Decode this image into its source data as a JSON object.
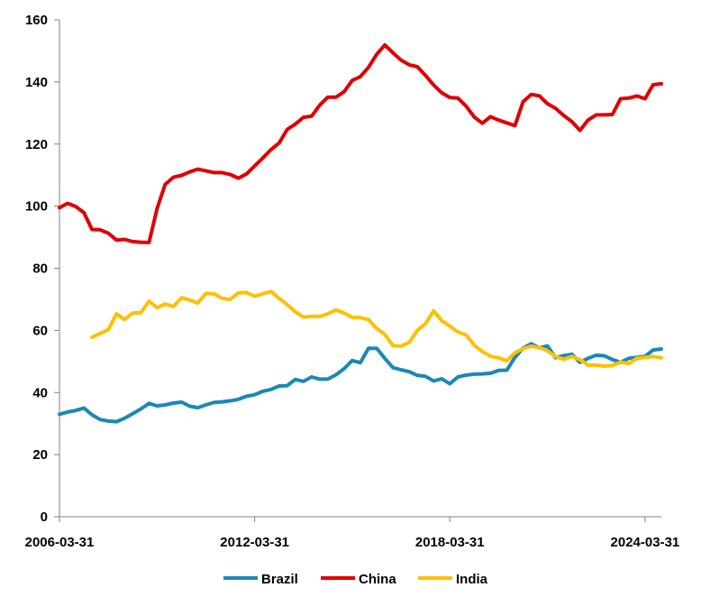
{
  "chart_data": {
    "type": "line",
    "title": "",
    "xlabel": "",
    "ylabel": "",
    "x_ticks": [
      "2006-03-31",
      "2012-03-31",
      "2018-03-31",
      "2024-03-31"
    ],
    "y_ticks": [
      "0",
      "20",
      "40",
      "60",
      "80",
      "100",
      "120",
      "140",
      "160"
    ],
    "ylim": [
      0,
      160
    ],
    "xlim": [
      "2006-03-31",
      "2024-09-30"
    ],
    "grid": false,
    "legend_position": "bottom",
    "colors": {
      "Brazil": "#1a88b8",
      "China": "#e00000",
      "India": "#ffc000"
    },
    "series": [
      {
        "name": "Brazil",
        "x": [
          "2006-03-31",
          "2006-06-30",
          "2006-09-30",
          "2006-12-31",
          "2007-03-31",
          "2007-06-30",
          "2007-09-30",
          "2007-12-31",
          "2008-03-31",
          "2008-06-30",
          "2008-09-30",
          "2008-12-31",
          "2009-03-31",
          "2009-06-30",
          "2009-09-30",
          "2009-12-31",
          "2010-03-31",
          "2010-06-30",
          "2010-09-30",
          "2010-12-31",
          "2011-03-31",
          "2011-06-30",
          "2011-09-30",
          "2011-12-31",
          "2012-03-31",
          "2012-06-30",
          "2012-09-30",
          "2012-12-31",
          "2013-03-31",
          "2013-06-30",
          "2013-09-30",
          "2013-12-31",
          "2014-03-31",
          "2014-06-30",
          "2014-09-30",
          "2014-12-31",
          "2015-03-31",
          "2015-06-30",
          "2015-09-30",
          "2015-12-31",
          "2016-03-31",
          "2016-06-30",
          "2016-09-30",
          "2016-12-31",
          "2017-03-31",
          "2017-06-30",
          "2017-09-30",
          "2017-12-31",
          "2018-03-31",
          "2018-06-30",
          "2018-09-30",
          "2018-12-31",
          "2019-03-31",
          "2019-06-30",
          "2019-09-30",
          "2019-12-31",
          "2020-03-31",
          "2020-06-30",
          "2020-09-30",
          "2020-12-31",
          "2021-03-31",
          "2021-06-30",
          "2021-09-30",
          "2021-12-31",
          "2022-03-31",
          "2022-06-30",
          "2022-09-30",
          "2022-12-31",
          "2023-03-31",
          "2023-06-30",
          "2023-09-30",
          "2023-12-31",
          "2024-03-31",
          "2024-06-30",
          "2024-09-30"
        ],
        "values": [
          33,
          33.7,
          34.2,
          35,
          32.8,
          31.3,
          30.8,
          30.6,
          31.7,
          33.2,
          34.7,
          36.5,
          35.7,
          36,
          36.6,
          36.9,
          35.6,
          35.1,
          36,
          36.8,
          37,
          37.3,
          37.8,
          38.8,
          39.3,
          40.4,
          41,
          42.1,
          42.2,
          44.2,
          43.6,
          45,
          44.3,
          44.3,
          45.7,
          47.7,
          50.3,
          49.6,
          54.2,
          54.2,
          51,
          48,
          47.3,
          46.7,
          45.5,
          45.2,
          43.7,
          44.4,
          42.8,
          45,
          45.6,
          45.9,
          46,
          46.2,
          47.1,
          47.2,
          51.3,
          54.3,
          55.7,
          54.4,
          55,
          51.2,
          51.9,
          52.3,
          49.7,
          51,
          52,
          51.8,
          50.6,
          49.7,
          51,
          51.3,
          51.6,
          53.7,
          54
        ]
      },
      {
        "name": "China",
        "x": [
          "2006-03-31",
          "2006-06-30",
          "2006-09-30",
          "2006-12-31",
          "2007-03-31",
          "2007-06-30",
          "2007-09-30",
          "2007-12-31",
          "2008-03-31",
          "2008-06-30",
          "2008-09-30",
          "2008-12-31",
          "2009-03-31",
          "2009-06-30",
          "2009-09-30",
          "2009-12-31",
          "2010-03-31",
          "2010-06-30",
          "2010-09-30",
          "2010-12-31",
          "2011-03-31",
          "2011-06-30",
          "2011-09-30",
          "2011-12-31",
          "2012-03-31",
          "2012-06-30",
          "2012-09-30",
          "2012-12-31",
          "2013-03-31",
          "2013-06-30",
          "2013-09-30",
          "2013-12-31",
          "2014-03-31",
          "2014-06-30",
          "2014-09-30",
          "2014-12-31",
          "2015-03-31",
          "2015-06-30",
          "2015-09-30",
          "2015-12-31",
          "2016-03-31",
          "2016-06-30",
          "2016-09-30",
          "2016-12-31",
          "2017-03-31",
          "2017-06-30",
          "2017-09-30",
          "2017-12-31",
          "2018-03-31",
          "2018-06-30",
          "2018-09-30",
          "2018-12-31",
          "2019-03-31",
          "2019-06-30",
          "2019-09-30",
          "2019-12-31",
          "2020-03-31",
          "2020-06-30",
          "2020-09-30",
          "2020-12-31",
          "2021-03-31",
          "2021-06-30",
          "2021-09-30",
          "2021-12-31",
          "2022-03-31",
          "2022-06-30",
          "2022-09-30",
          "2022-12-31",
          "2023-03-31",
          "2023-06-30",
          "2023-09-30",
          "2023-12-31",
          "2024-03-31",
          "2024-06-30",
          "2024-09-30"
        ],
        "values": [
          99.5,
          100.9,
          99.9,
          97.9,
          92.5,
          92.4,
          91.3,
          89.1,
          89.3,
          88.6,
          88.4,
          88.3,
          99.2,
          107,
          109.3,
          109.9,
          111,
          111.9,
          111.4,
          110.8,
          110.8,
          110.2,
          109,
          110.4,
          113,
          115.5,
          118.2,
          120.4,
          124.7,
          126.4,
          128.6,
          129,
          132.5,
          135.1,
          135.1,
          136.9,
          140.5,
          141.7,
          144.7,
          148.9,
          151.9,
          149.4,
          147,
          145.5,
          144.9,
          142.1,
          139,
          136.5,
          135,
          134.8,
          132.2,
          128.7,
          126.7,
          128.8,
          127.7,
          126.8,
          125.9,
          133.6,
          136,
          135.5,
          133,
          131.5,
          129.2,
          127.2,
          124.4,
          127.7,
          129.4,
          129.4,
          129.5,
          134.6,
          134.8,
          135.5,
          134.6,
          139.1,
          139.4
        ]
      },
      {
        "name": "India",
        "x": [
          "2007-03-31",
          "2007-06-30",
          "2007-09-30",
          "2007-12-31",
          "2008-03-31",
          "2008-06-30",
          "2008-09-30",
          "2008-12-31",
          "2009-03-31",
          "2009-06-30",
          "2009-09-30",
          "2009-12-31",
          "2010-03-31",
          "2010-06-30",
          "2010-09-30",
          "2010-12-31",
          "2011-03-31",
          "2011-06-30",
          "2011-09-30",
          "2011-12-31",
          "2012-03-31",
          "2012-06-30",
          "2012-09-30",
          "2012-12-31",
          "2013-03-31",
          "2013-06-30",
          "2013-09-30",
          "2013-12-31",
          "2014-03-31",
          "2014-06-30",
          "2014-09-30",
          "2014-12-31",
          "2015-03-31",
          "2015-06-30",
          "2015-09-30",
          "2015-12-31",
          "2016-03-31",
          "2016-06-30",
          "2016-09-30",
          "2016-12-31",
          "2017-03-31",
          "2017-06-30",
          "2017-09-30",
          "2017-12-31",
          "2018-03-31",
          "2018-06-30",
          "2018-09-30",
          "2018-12-31",
          "2019-03-31",
          "2019-06-30",
          "2019-09-30",
          "2019-12-31",
          "2020-03-31",
          "2020-06-30",
          "2020-09-30",
          "2020-12-31",
          "2021-03-31",
          "2021-06-30",
          "2021-09-30",
          "2021-12-31",
          "2022-03-31",
          "2022-06-30",
          "2022-09-30",
          "2022-12-31",
          "2023-03-31",
          "2023-06-30",
          "2023-09-30",
          "2023-12-31",
          "2024-03-31",
          "2024-06-30",
          "2024-09-30"
        ],
        "values": [
          57.8,
          59,
          60.2,
          65.3,
          63.5,
          65.6,
          65.7,
          69.4,
          67.3,
          68.5,
          67.7,
          70.5,
          69.8,
          68.8,
          71.9,
          71.8,
          70.3,
          70,
          72.1,
          72.2,
          71,
          71.8,
          72.5,
          70.3,
          68.3,
          66,
          64.3,
          64.5,
          64.5,
          65.3,
          66.6,
          65.6,
          64.2,
          64.1,
          63.5,
          60.6,
          58.7,
          55.1,
          54.9,
          56.2,
          60,
          62.1,
          66.3,
          63.1,
          61.4,
          59.5,
          58.5,
          55.2,
          53.2,
          51.7,
          51.2,
          50.2,
          52.8,
          54.1,
          54.9,
          54.5,
          53.4,
          51.6,
          50.7,
          51.6,
          50.6,
          48.8,
          48.8,
          48.5,
          48.7,
          49.8,
          49.3,
          51,
          51.3,
          51.6,
          51.2
        ]
      }
    ]
  }
}
